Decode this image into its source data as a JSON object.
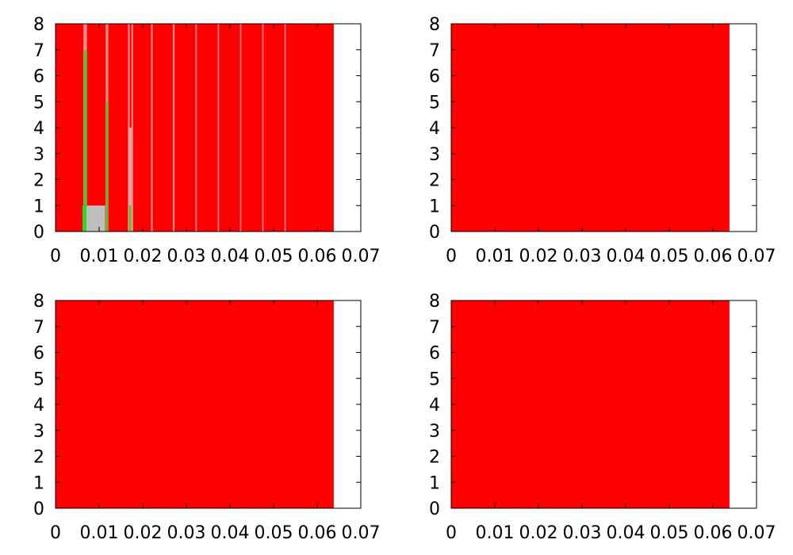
{
  "colors": {
    "red": "#ff0000",
    "green": "#22dd22",
    "gray": "#bebebe",
    "pink": "#ff8a8a",
    "axis": "#000000",
    "background": "#ffffff"
  },
  "chart_data": [
    {
      "type": "area",
      "title": "",
      "xlabel": "",
      "ylabel": "",
      "xlim": [
        0,
        0.07
      ],
      "ylim": [
        0,
        8
      ],
      "x_ticks": [
        "0",
        "0.01",
        "0.02",
        "0.03",
        "0.04",
        "0.05",
        "0.06",
        "0.07"
      ],
      "y_ticks": [
        "0",
        "1",
        "2",
        "3",
        "4",
        "5",
        "6",
        "7",
        "8"
      ],
      "grid": false,
      "legend": "none",
      "series": [
        {
          "color": "red",
          "x_start": 0,
          "x_end": 0.0638,
          "y_start": 0,
          "y_end": 8
        }
      ],
      "overlays": [
        {
          "color": "pink",
          "x_start": 0.0064,
          "x_end": 0.0072,
          "y_start": 0,
          "y_end": 8
        },
        {
          "color": "green",
          "x_start": 0.0065,
          "x_end": 0.0071,
          "y_start": 0,
          "y_end": 7
        },
        {
          "color": "green",
          "x_start": 0.0062,
          "x_end": 0.0065,
          "y_start": 0,
          "y_end": 1
        },
        {
          "color": "gray",
          "x_start": 0.0071,
          "x_end": 0.0114,
          "y_start": 0,
          "y_end": 1
        },
        {
          "color": "pink",
          "x_start": 0.0115,
          "x_end": 0.0121,
          "y_start": 0,
          "y_end": 8
        },
        {
          "color": "green",
          "x_start": 0.0116,
          "x_end": 0.012,
          "y_start": 0,
          "y_end": 5
        },
        {
          "color": "pink",
          "x_start": 0.0166,
          "x_end": 0.017,
          "y_start": 0,
          "y_end": 8
        },
        {
          "color": "gray",
          "x_start": 0.017,
          "x_end": 0.0174,
          "y_start": 0,
          "y_end": 4
        },
        {
          "color": "green",
          "x_start": 0.0169,
          "x_end": 0.0173,
          "y_start": 0,
          "y_end": 1
        },
        {
          "color": "pink",
          "x_start": 0.0174,
          "x_end": 0.0178,
          "y_start": 0,
          "y_end": 8
        },
        {
          "color": "pink",
          "x_start": 0.0219,
          "x_end": 0.0223,
          "y_start": 0,
          "y_end": 8
        },
        {
          "color": "pink",
          "x_start": 0.0269,
          "x_end": 0.0273,
          "y_start": 0,
          "y_end": 8
        },
        {
          "color": "pink",
          "x_start": 0.0321,
          "x_end": 0.0324,
          "y_start": 0,
          "y_end": 8
        },
        {
          "color": "pink",
          "x_start": 0.0372,
          "x_end": 0.0375,
          "y_start": 0,
          "y_end": 8
        },
        {
          "color": "pink",
          "x_start": 0.0423,
          "x_end": 0.0426,
          "y_start": 0,
          "y_end": 8
        },
        {
          "color": "pink",
          "x_start": 0.0474,
          "x_end": 0.0477,
          "y_start": 0,
          "y_end": 8
        },
        {
          "color": "pink",
          "x_start": 0.0525,
          "x_end": 0.0528,
          "y_start": 0,
          "y_end": 8
        }
      ]
    },
    {
      "type": "area",
      "title": "",
      "xlabel": "",
      "ylabel": "",
      "xlim": [
        0,
        0.07
      ],
      "ylim": [
        0,
        8
      ],
      "x_ticks": [
        "0",
        "0.01",
        "0.02",
        "0.03",
        "0.04",
        "0.05",
        "0.06",
        "0.07"
      ],
      "y_ticks": [
        "0",
        "1",
        "2",
        "3",
        "4",
        "5",
        "6",
        "7",
        "8"
      ],
      "grid": false,
      "legend": "none",
      "series": [
        {
          "color": "red",
          "x_start": 0,
          "x_end": 0.0638,
          "y_start": 0,
          "y_end": 8
        }
      ],
      "overlays": []
    },
    {
      "type": "area",
      "title": "",
      "xlabel": "",
      "ylabel": "",
      "xlim": [
        0,
        0.07
      ],
      "ylim": [
        0,
        8
      ],
      "x_ticks": [
        "0",
        "0.01",
        "0.02",
        "0.03",
        "0.04",
        "0.05",
        "0.06",
        "0.07"
      ],
      "y_ticks": [
        "0",
        "1",
        "2",
        "3",
        "4",
        "5",
        "6",
        "7",
        "8"
      ],
      "grid": false,
      "legend": "none",
      "series": [
        {
          "color": "red",
          "x_start": 0,
          "x_end": 0.0638,
          "y_start": 0,
          "y_end": 8
        }
      ],
      "overlays": []
    },
    {
      "type": "area",
      "title": "",
      "xlabel": "",
      "ylabel": "",
      "xlim": [
        0,
        0.07
      ],
      "ylim": [
        0,
        8
      ],
      "x_ticks": [
        "0",
        "0.01",
        "0.02",
        "0.03",
        "0.04",
        "0.05",
        "0.06",
        "0.07"
      ],
      "y_ticks": [
        "0",
        "1",
        "2",
        "3",
        "4",
        "5",
        "6",
        "7",
        "8"
      ],
      "grid": false,
      "legend": "none",
      "series": [
        {
          "color": "red",
          "x_start": 0,
          "x_end": 0.0638,
          "y_start": 0,
          "y_end": 8
        }
      ],
      "overlays": []
    }
  ]
}
